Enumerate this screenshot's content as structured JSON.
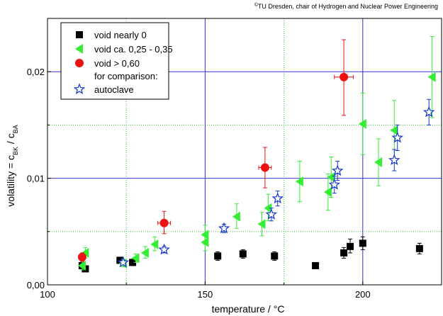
{
  "credit": {
    "symbol": "©",
    "text": "TU Dresden, chair of Hydrogen and Nuclear Power Engineering"
  },
  "chart_data": {
    "type": "scatter",
    "xlabel": "temperature / °C",
    "ylabel": {
      "base": "volatility = c",
      "sub1": "BK",
      "mid": " / c",
      "sub2": "BA"
    },
    "xlim": [
      100,
      225
    ],
    "ylim": [
      0,
      0.025
    ],
    "x_ticks": [
      100,
      150,
      200
    ],
    "x_tick_labels": [
      "100",
      "150",
      "200"
    ],
    "y_ticks": [
      0,
      0.01,
      0.02
    ],
    "y_tick_labels": [
      "0,00",
      "0,01",
      "0,02"
    ],
    "grid": {
      "major_color": "#3333cc",
      "minor_color": "#33cc33",
      "minor_style": "dotted",
      "major_x": [
        150,
        200
      ],
      "major_y": [
        0.01,
        0.02
      ],
      "minor_x": [
        125,
        175
      ],
      "minor_y": [
        0.005,
        0.015
      ]
    },
    "legend": {
      "position": "top-left",
      "comparison_label": "for comparison:"
    },
    "series": [
      {
        "name": "void nearly 0",
        "marker": "square",
        "color": "#000000",
        "points": [
          {
            "x": 111,
            "y": 0.0018,
            "ylo": 0.0015,
            "yhi": 0.0021
          },
          {
            "x": 112,
            "y": 0.0015,
            "ylo": 0.0013,
            "yhi": 0.0017
          },
          {
            "x": 123,
            "y": 0.0023,
            "ylo": 0.002,
            "yhi": 0.0026
          },
          {
            "x": 127,
            "y": 0.0021,
            "ylo": 0.0018,
            "yhi": 0.0024
          },
          {
            "x": 154,
            "y": 0.0027,
            "ylo": 0.0023,
            "yhi": 0.0031
          },
          {
            "x": 162,
            "y": 0.0029,
            "ylo": 0.0025,
            "yhi": 0.0033
          },
          {
            "x": 172,
            "y": 0.0027,
            "ylo": 0.0023,
            "yhi": 0.0031
          },
          {
            "x": 185,
            "y": 0.0018,
            "ylo": 0.0016,
            "yhi": 0.002
          },
          {
            "x": 194,
            "y": 0.003,
            "ylo": 0.0025,
            "yhi": 0.0035
          },
          {
            "x": 196,
            "y": 0.0036,
            "ylo": 0.003,
            "yhi": 0.0043
          },
          {
            "x": 200,
            "y": 0.0039,
            "ylo": 0.0033,
            "yhi": 0.0045
          },
          {
            "x": 218,
            "y": 0.0034,
            "ylo": 0.0029,
            "yhi": 0.0039
          }
        ]
      },
      {
        "name": "void ca. 0,25 - 0,35",
        "marker": "triangle-left",
        "color": "#33ee33",
        "points": [
          {
            "x": 111,
            "y": 0.0018,
            "ylo": 0.0014,
            "yhi": 0.0022
          },
          {
            "x": 112,
            "y": 0.003,
            "ylo": 0.0025,
            "yhi": 0.0035
          },
          {
            "x": 124,
            "y": 0.002,
            "ylo": 0.0017,
            "yhi": 0.0024
          },
          {
            "x": 128,
            "y": 0.0025,
            "ylo": 0.0021,
            "yhi": 0.0029
          },
          {
            "x": 131,
            "y": 0.003,
            "ylo": 0.0025,
            "yhi": 0.0036
          },
          {
            "x": 134,
            "y": 0.0038,
            "ylo": 0.0032,
            "yhi": 0.0045
          },
          {
            "x": 150,
            "y": 0.0047,
            "ylo": 0.0038,
            "yhi": 0.0056
          },
          {
            "x": 150,
            "y": 0.004,
            "ylo": 0.0032,
            "yhi": 0.0048
          },
          {
            "x": 160,
            "y": 0.0064,
            "ylo": 0.0053,
            "yhi": 0.0076
          },
          {
            "x": 168,
            "y": 0.0057,
            "ylo": 0.0046,
            "yhi": 0.0068
          },
          {
            "x": 170,
            "y": 0.0072,
            "ylo": 0.006,
            "yhi": 0.0085
          },
          {
            "x": 180,
            "y": 0.0097,
            "ylo": 0.0078,
            "yhi": 0.0116
          },
          {
            "x": 189,
            "y": 0.0087,
            "ylo": 0.007,
            "yhi": 0.0104
          },
          {
            "x": 190,
            "y": 0.0101,
            "ylo": 0.0082,
            "yhi": 0.012
          },
          {
            "x": 200,
            "y": 0.0151,
            "ylo": 0.0122,
            "yhi": 0.018
          },
          {
            "x": 205,
            "y": 0.0115,
            "ylo": 0.0093,
            "yhi": 0.0137
          },
          {
            "x": 210,
            "y": 0.0145,
            "ylo": 0.0117,
            "yhi": 0.0173
          },
          {
            "x": 222,
            "y": 0.0195,
            "ylo": 0.0157,
            "yhi": 0.0233
          }
        ]
      },
      {
        "name": "void > 0,60",
        "marker": "circle",
        "color": "#ee1111",
        "points": [
          {
            "x": 111,
            "y": 0.0026,
            "ylo": 0.0022,
            "yhi": 0.003,
            "xerr": 1
          },
          {
            "x": 137,
            "y": 0.0058,
            "ylo": 0.0048,
            "yhi": 0.0069,
            "xerr": 2
          },
          {
            "x": 169,
            "y": 0.011,
            "ylo": 0.0091,
            "yhi": 0.0129,
            "xerr": 2
          },
          {
            "x": 194,
            "y": 0.0195,
            "ylo": 0.0159,
            "yhi": 0.023,
            "xerr": 3
          }
        ]
      },
      {
        "name": "autoclave",
        "marker": "star-open",
        "color": "#1133cc",
        "points": [
          {
            "x": 124,
            "y": 0.0021,
            "ylo": 0.0019,
            "yhi": 0.0023
          },
          {
            "x": 137,
            "y": 0.0033,
            "ylo": 0.003,
            "yhi": 0.0036
          },
          {
            "x": 156,
            "y": 0.0053,
            "ylo": 0.0049,
            "yhi": 0.0057
          },
          {
            "x": 171,
            "y": 0.0066,
            "ylo": 0.006,
            "yhi": 0.0072
          },
          {
            "x": 173,
            "y": 0.0081,
            "ylo": 0.0074,
            "yhi": 0.0088
          },
          {
            "x": 191,
            "y": 0.0094,
            "ylo": 0.0086,
            "yhi": 0.0102
          },
          {
            "x": 192,
            "y": 0.0107,
            "ylo": 0.0098,
            "yhi": 0.0116
          },
          {
            "x": 210,
            "y": 0.0117,
            "ylo": 0.0107,
            "yhi": 0.0127
          },
          {
            "x": 211,
            "y": 0.0138,
            "ylo": 0.0126,
            "yhi": 0.015
          },
          {
            "x": 221,
            "y": 0.0162,
            "ylo": 0.015,
            "yhi": 0.0174
          }
        ]
      }
    ]
  }
}
